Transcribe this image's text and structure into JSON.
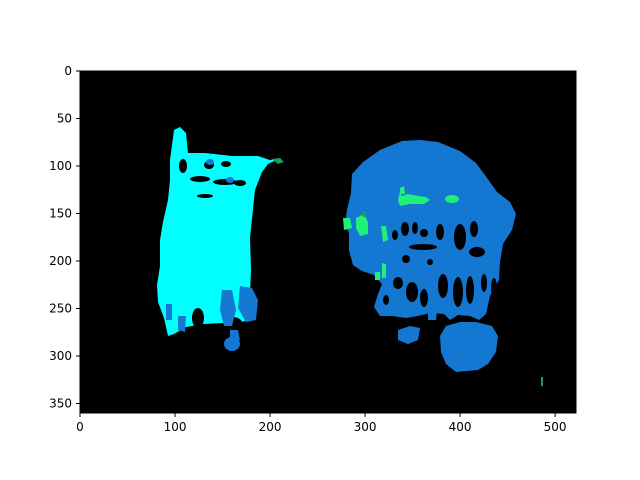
{
  "chart_data": {
    "type": "heatmap",
    "title": "",
    "xlabel": "",
    "ylabel": "",
    "xlim": [
      0,
      522
    ],
    "ylim": [
      360,
      0
    ],
    "y_inverted": true,
    "x_ticks": [
      0,
      100,
      200,
      300,
      400,
      500
    ],
    "y_ticks": [
      0,
      50,
      100,
      150,
      200,
      250,
      300,
      350
    ],
    "grid": false,
    "legend": "none",
    "colors": {
      "background": "#000000",
      "segment_a": "#00ffff",
      "segment_b": "#1478d2",
      "segment_c": "#1ef078",
      "segment_d": "#14a05a"
    }
  }
}
